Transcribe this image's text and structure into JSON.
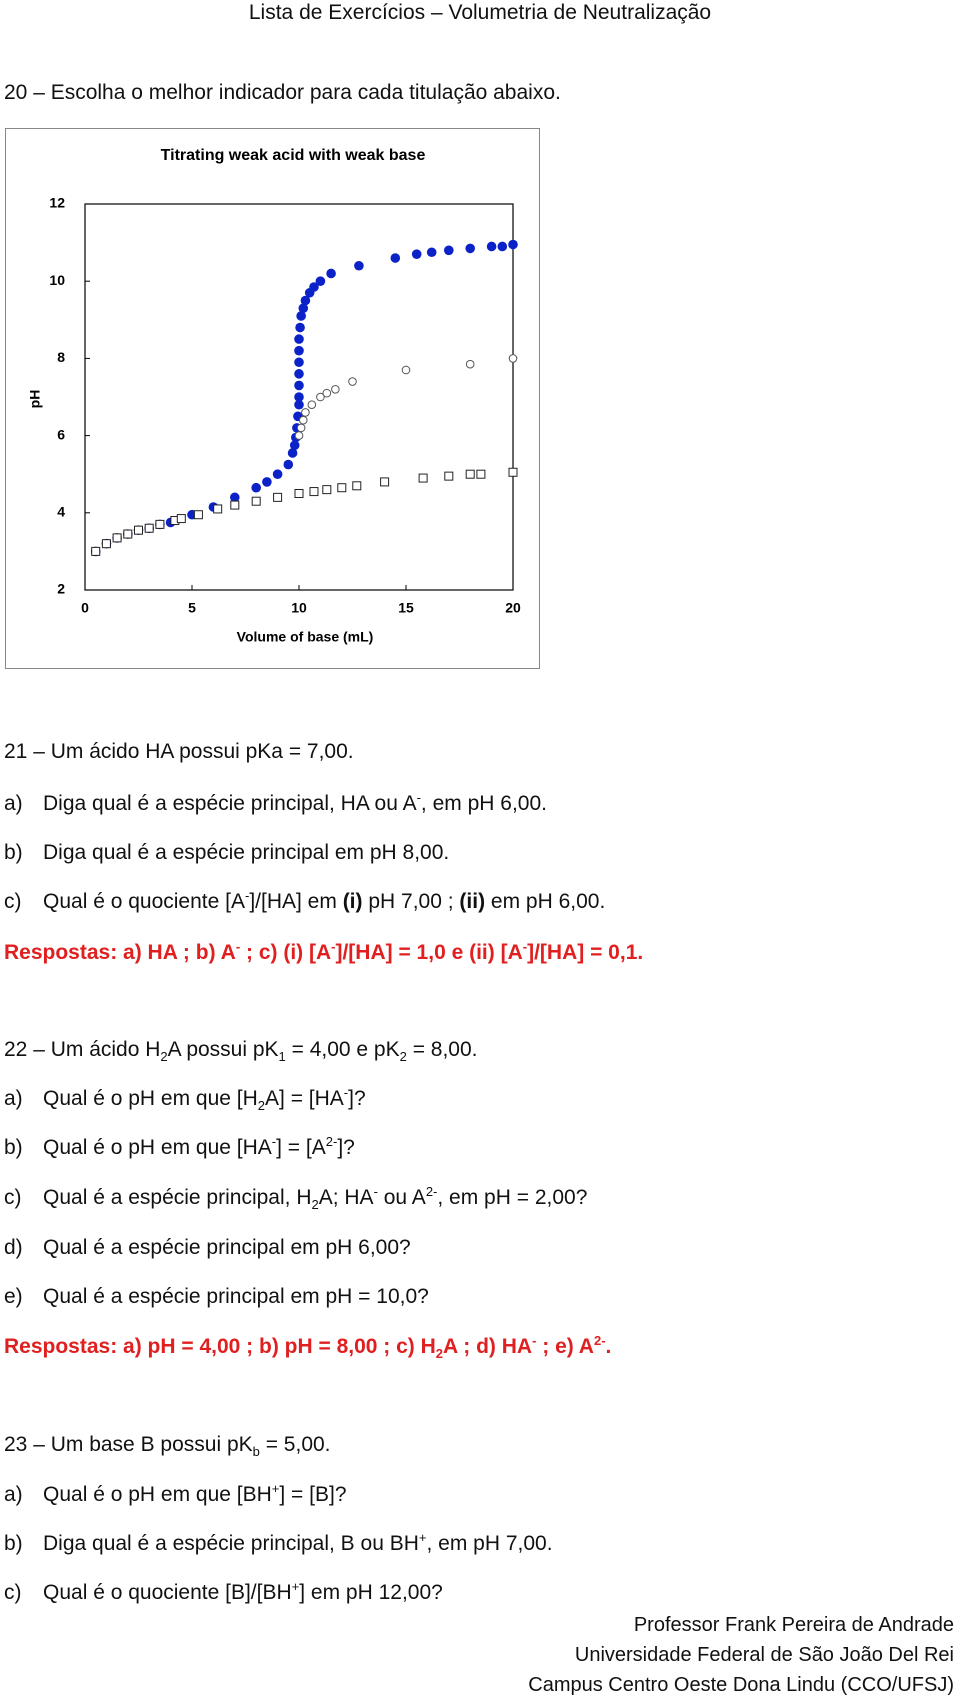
{
  "header": {
    "title": "Lista de Exercícios – Volumetria de Neutralização"
  },
  "questions": [
    {
      "heading": [
        {
          "text": "20 – Escolha o melhor indicador para cada titulação abaixo."
        }
      ],
      "items": []
    },
    {
      "heading": [
        {
          "text": "21 – Um ácido HA possui pKa = 7,00."
        }
      ],
      "items": [
        {
          "label": "a)",
          "runs": [
            {
              "text": "Diga qual é a espécie principal, HA ou A"
            },
            {
              "text": "-",
              "pos": "sup"
            },
            {
              "text": ", em pH 6,00."
            }
          ]
        },
        {
          "label": "b)",
          "runs": [
            {
              "text": "Diga qual é a espécie principal em pH 8,00."
            }
          ]
        },
        {
          "label": "c)",
          "runs": [
            {
              "text": "Qual é o quociente [A"
            },
            {
              "text": "-",
              "pos": "sup"
            },
            {
              "text": "]/[HA] em "
            },
            {
              "text": "(i)",
              "bold": true
            },
            {
              "text": " pH 7,00 ; "
            },
            {
              "text": "(ii)",
              "bold": true
            },
            {
              "text": " em pH 6,00."
            }
          ]
        }
      ],
      "answer": [
        {
          "text": "Respostas: a) HA ; b) A"
        },
        {
          "text": "-",
          "pos": "sup"
        },
        {
          "text": " ; c) (i) [A"
        },
        {
          "text": "-",
          "pos": "sup"
        },
        {
          "text": "]/[HA] = 1,0 e (ii) [A"
        },
        {
          "text": "-",
          "pos": "sup"
        },
        {
          "text": "]/[HA] = 0,1."
        }
      ]
    },
    {
      "heading": [
        {
          "text": "22 – Um ácido H"
        },
        {
          "text": "2",
          "pos": "sub"
        },
        {
          "text": "A possui pK"
        },
        {
          "text": "1",
          "pos": "sub"
        },
        {
          "text": " = 4,00 e pK"
        },
        {
          "text": "2",
          "pos": "sub"
        },
        {
          "text": " = 8,00."
        }
      ],
      "items": [
        {
          "label": "a)",
          "runs": [
            {
              "text": "Qual é o pH em que [H"
            },
            {
              "text": "2",
              "pos": "sub"
            },
            {
              "text": "A] = [HA"
            },
            {
              "text": "-",
              "pos": "sup"
            },
            {
              "text": "]?"
            }
          ]
        },
        {
          "label": "b)",
          "runs": [
            {
              "text": "Qual é o pH em que [HA"
            },
            {
              "text": "-",
              "pos": "sup"
            },
            {
              "text": "] = [A"
            },
            {
              "text": "2-",
              "pos": "sup"
            },
            {
              "text": "]?"
            }
          ]
        },
        {
          "label": "c)",
          "runs": [
            {
              "text": "Qual é a espécie principal, H"
            },
            {
              "text": "2",
              "pos": "sub"
            },
            {
              "text": "A; HA"
            },
            {
              "text": "-",
              "pos": "sup"
            },
            {
              "text": " ou A"
            },
            {
              "text": "2-",
              "pos": "sup"
            },
            {
              "text": ", em pH = 2,00?"
            }
          ]
        },
        {
          "label": "d)",
          "runs": [
            {
              "text": "Qual é a espécie principal em pH 6,00?"
            }
          ]
        },
        {
          "label": "e)",
          "runs": [
            {
              "text": "Qual é a espécie principal em pH = 10,0?"
            }
          ]
        }
      ],
      "answer": [
        {
          "text": "Respostas: a) pH = 4,00 ; b) pH = 8,00 ; c) H"
        },
        {
          "text": "2",
          "pos": "sub"
        },
        {
          "text": "A ; d) HA"
        },
        {
          "text": "-",
          "pos": "sup"
        },
        {
          "text": " ; e) A"
        },
        {
          "text": "2-",
          "pos": "sup"
        },
        {
          "text": "."
        }
      ]
    },
    {
      "heading": [
        {
          "text": "23 – Um base B possui pK"
        },
        {
          "text": "b",
          "pos": "sub"
        },
        {
          "text": " = 5,00."
        }
      ],
      "items": [
        {
          "label": "a)",
          "runs": [
            {
              "text": "Qual é o pH em que [BH"
            },
            {
              "text": "+",
              "pos": "sup"
            },
            {
              "text": "] = [B]?"
            }
          ]
        },
        {
          "label": "b)",
          "runs": [
            {
              "text": "Diga qual é a espécie principal, B ou BH"
            },
            {
              "text": "+",
              "pos": "sup"
            },
            {
              "text": ", em pH 7,00."
            }
          ]
        },
        {
          "label": "c)",
          "runs": [
            {
              "text": "Qual é o quociente [B]/[BH"
            },
            {
              "text": "+",
              "pos": "sup"
            },
            {
              "text": "] em pH 12,00?"
            }
          ]
        }
      ]
    }
  ],
  "answer_color": "#e02020",
  "footer": [
    "Professor Frank Pereira de Andrade",
    "Universidade Federal de São João Del Rei",
    "Campus Centro Oeste Dona Lindu (CCO/UFSJ)"
  ],
  "chart_data": {
    "type": "scatter",
    "title": "Titrating weak acid with weak base",
    "x_label": "Volume of base (mL)",
    "y_label": "pH",
    "xlim": [
      0,
      20
    ],
    "ylim": [
      2,
      12
    ],
    "xticks": [
      0,
      5,
      10,
      15,
      20
    ],
    "yticks": [
      2,
      4,
      6,
      8,
      10,
      12
    ],
    "series": [
      {
        "color": "#0a22c8",
        "marker": "filled-circle",
        "x": [
          0.5,
          1,
          1.5,
          2,
          2.5,
          3,
          3.5,
          4,
          5,
          6,
          7,
          8,
          8.5,
          9,
          9.5,
          9.7,
          9.8,
          9.85,
          9.9,
          9.95,
          10,
          10,
          10,
          10,
          10,
          10,
          10,
          10.05,
          10.1,
          10.2,
          10.3,
          10.5,
          10.7,
          11,
          11.5,
          12.8,
          14.5,
          15.5,
          16.2,
          17,
          18,
          19,
          19.5,
          20
        ],
        "values": [
          3.0,
          3.2,
          3.35,
          3.45,
          3.55,
          3.6,
          3.7,
          3.75,
          3.95,
          4.15,
          4.4,
          4.65,
          4.8,
          5.0,
          5.25,
          5.55,
          5.75,
          5.95,
          6.2,
          6.5,
          6.8,
          7.0,
          7.3,
          7.6,
          7.9,
          8.2,
          8.5,
          8.8,
          9.1,
          9.3,
          9.5,
          9.7,
          9.85,
          10.0,
          10.2,
          10.4,
          10.6,
          10.7,
          10.75,
          10.8,
          10.85,
          10.9,
          10.9,
          10.95
        ]
      },
      {
        "color": "#555555",
        "marker": "open-circle",
        "x": [
          10,
          10.1,
          10.2,
          10.3,
          10.6,
          11,
          11.3,
          11.7,
          12.5,
          15,
          18,
          20
        ],
        "values": [
          6.0,
          6.2,
          6.4,
          6.6,
          6.8,
          7.0,
          7.1,
          7.2,
          7.4,
          7.7,
          7.85,
          8.0
        ]
      },
      {
        "color": "#222222",
        "marker": "open-square",
        "x": [
          0.5,
          1,
          1.5,
          2,
          2.5,
          3,
          3.5,
          4.2,
          4.5,
          5.3,
          6.2,
          7,
          8,
          9,
          10,
          10.7,
          11.3,
          12,
          12.7,
          14,
          15.8,
          17,
          18,
          18.5,
          20
        ],
        "values": [
          3.0,
          3.2,
          3.35,
          3.45,
          3.55,
          3.6,
          3.7,
          3.8,
          3.85,
          3.95,
          4.1,
          4.2,
          4.3,
          4.4,
          4.5,
          4.55,
          4.6,
          4.65,
          4.7,
          4.8,
          4.9,
          4.95,
          5.0,
          5.0,
          5.05
        ]
      }
    ]
  }
}
